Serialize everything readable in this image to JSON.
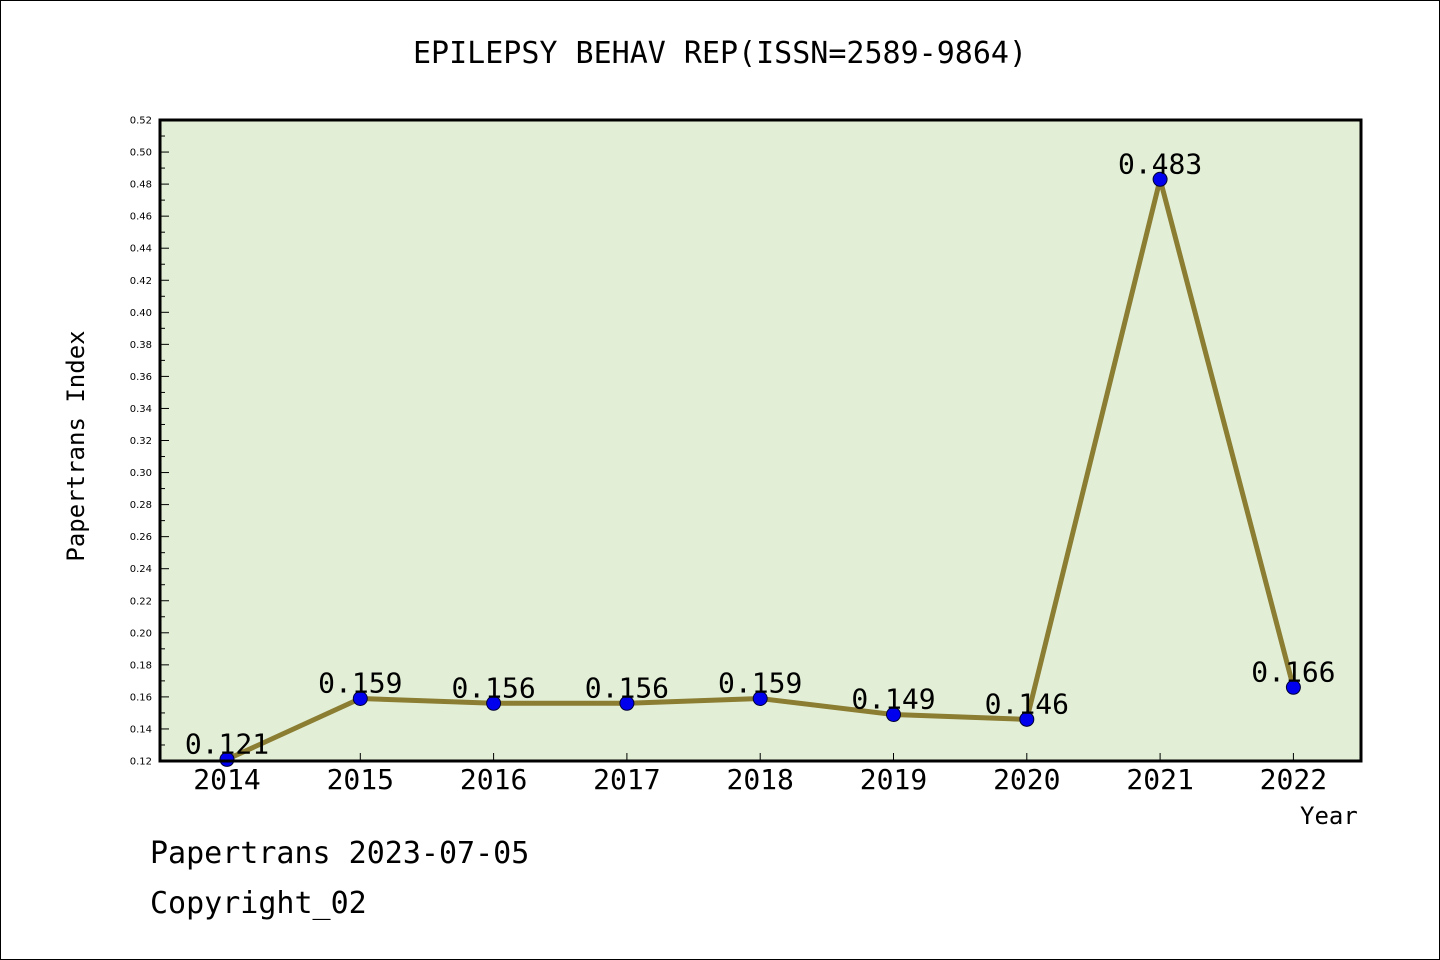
{
  "chart_data": {
    "type": "line",
    "title": "EPILEPSY BEHAV REP(ISSN=2589-9864)",
    "xlabel": "Year",
    "ylabel": "Papertrans Index",
    "categories": [
      "2014",
      "2015",
      "2016",
      "2017",
      "2018",
      "2019",
      "2020",
      "2021",
      "2022"
    ],
    "values": [
      0.121,
      0.159,
      0.156,
      0.156,
      0.159,
      0.149,
      0.146,
      0.483,
      0.166
    ],
    "data_labels": [
      "0.121",
      "0.159",
      "0.156",
      "0.156",
      "0.159",
      "0.149",
      "0.146",
      "0.483",
      "0.166"
    ],
    "ylim": [
      0.12,
      0.52
    ],
    "yticks": [
      "0.12",
      "0.14",
      "0.16",
      "0.18",
      "0.20",
      "0.22",
      "0.24",
      "0.26",
      "0.28",
      "0.30",
      "0.32",
      "0.34",
      "0.36",
      "0.38",
      "0.40",
      "0.42",
      "0.44",
      "0.46",
      "0.48",
      "0.50",
      "0.52"
    ],
    "grid": false,
    "colors": {
      "plot_bg": "#e2efd6",
      "line": "#8b7d32",
      "marker": "#0000ee"
    }
  },
  "footer": {
    "date": "Papertrans 2023-07-05",
    "copyright": "Copyright_02"
  }
}
